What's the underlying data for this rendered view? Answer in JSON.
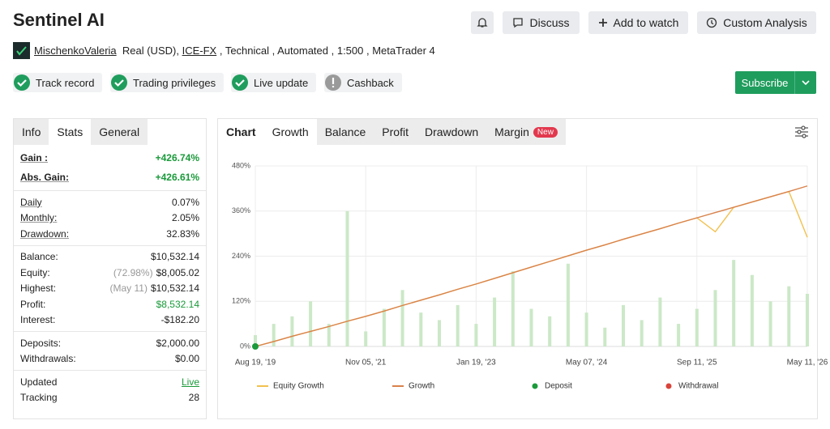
{
  "header": {
    "title": "Sentinel AI",
    "buttons": [
      "Discuss",
      "Add to watch",
      "Custom Analysis"
    ]
  },
  "meta": {
    "user": "MischenkoValeria",
    "account": "Real (USD),",
    "broker": "ICE-FX",
    "details": ", Technical , Automated , 1:500 , MetaTrader 4"
  },
  "badges": [
    "Track record",
    "Trading privileges",
    "Live update",
    "Cashback"
  ],
  "subscribe": "Subscribe",
  "stats": {
    "tabs": [
      "Info",
      "Stats",
      "General"
    ],
    "groups": [
      [
        {
          "label": "Gain :",
          "value": "+426.74%",
          "color": "#1a9a3a"
        },
        {
          "label": "Abs. Gain:",
          "value": "+426.61%",
          "color": "#1a9a3a"
        }
      ],
      [
        {
          "label": "Daily",
          "value": "0.07%"
        },
        {
          "label": "Monthly:",
          "value": "2.05%"
        },
        {
          "label": "Drawdown:",
          "value": "32.83%"
        }
      ],
      [
        {
          "label": "Balance:",
          "value": "$10,532.14"
        },
        {
          "label": "Equity:",
          "note": "(72.98%)",
          "value": "$8,005.02"
        },
        {
          "label": "Highest:",
          "note": "(May 11)",
          "value": "$10,532.14"
        },
        {
          "label": "Profit:",
          "value": "$8,532.14",
          "color": "#1a9a3a"
        },
        {
          "label": "Interest:",
          "value": "-$182.20"
        }
      ],
      [
        {
          "label": "Deposits:",
          "value": "$2,000.00"
        },
        {
          "label": "Withdrawals:",
          "value": "$0.00"
        }
      ],
      [
        {
          "label": "Updated",
          "value": "Live",
          "color": "#1a9a3a"
        },
        {
          "label": "Tracking",
          "value": "28"
        }
      ]
    ]
  },
  "chart_tabs": {
    "label": "Chart",
    "tabs": [
      "Growth",
      "Balance",
      "Profit",
      "Drawdown",
      "Margin"
    ],
    "new_badge": "New"
  },
  "chart_data": {
    "type": "line",
    "categories": [
      "Aug 19, '19",
      null,
      null,
      null,
      null,
      null,
      "Nov 05, '21",
      null,
      null,
      null,
      null,
      null,
      "Jan 19, '23",
      null,
      null,
      null,
      null,
      null,
      "May 07, '24",
      null,
      null,
      null,
      null,
      null,
      "Sep 11, '25",
      null,
      null,
      null,
      null,
      null,
      "May 11, '26"
    ],
    "ylim": [
      0,
      480
    ],
    "yticks": [
      {
        "value": 0,
        "label": "0%"
      },
      {
        "value": 120,
        "label": "120%"
      },
      {
        "value": 240,
        "label": "240%"
      },
      {
        "value": 360,
        "label": "360%"
      },
      {
        "value": 480,
        "label": "480%"
      }
    ],
    "grid": true,
    "bars": {
      "color": "#cbe8c7",
      "values": [
        30,
        60,
        80,
        120,
        60,
        360,
        40,
        100,
        150,
        90,
        70,
        110,
        60,
        130,
        200,
        100,
        80,
        220,
        90,
        50,
        110,
        70,
        130,
        60,
        100,
        150,
        230,
        190,
        120,
        160,
        140
      ]
    },
    "series": [
      {
        "name": "Equity Growth",
        "color": "#f2c14e",
        "values": [
          0,
          13,
          27,
          40,
          53,
          67,
          80,
          94,
          109,
          123,
          137,
          152,
          166,
          181,
          196,
          211,
          226,
          241,
          256,
          270,
          285,
          299,
          313,
          328,
          342,
          305,
          370,
          384,
          398,
          412,
          290
        ]
      },
      {
        "name": "Growth",
        "color": "#d9824b",
        "values": [
          0,
          13,
          27,
          40,
          53,
          67,
          80,
          94,
          109,
          123,
          137,
          152,
          166,
          181,
          196,
          211,
          226,
          241,
          256,
          270,
          285,
          299,
          313,
          328,
          342,
          356,
          370,
          384,
          398,
          412,
          426.74
        ]
      },
      {
        "name": "Deposit",
        "color": "#1a9a3a",
        "values": [
          0,
          null,
          null,
          null,
          null,
          null,
          null,
          null,
          null,
          null,
          null,
          null,
          null,
          null,
          null,
          null,
          null,
          null,
          null,
          null,
          null,
          null,
          null,
          null,
          null,
          null,
          null,
          null,
          null,
          null,
          null
        ]
      },
      {
        "name": "Withdrawal",
        "color": "#d9453a",
        "values": [
          null,
          null,
          null,
          null,
          null,
          null,
          null,
          null,
          null,
          null,
          null,
          null,
          null,
          null,
          null,
          null,
          null,
          null,
          null,
          null,
          null,
          null,
          null,
          null,
          null,
          null,
          null,
          null,
          null,
          null,
          null
        ]
      }
    ]
  }
}
